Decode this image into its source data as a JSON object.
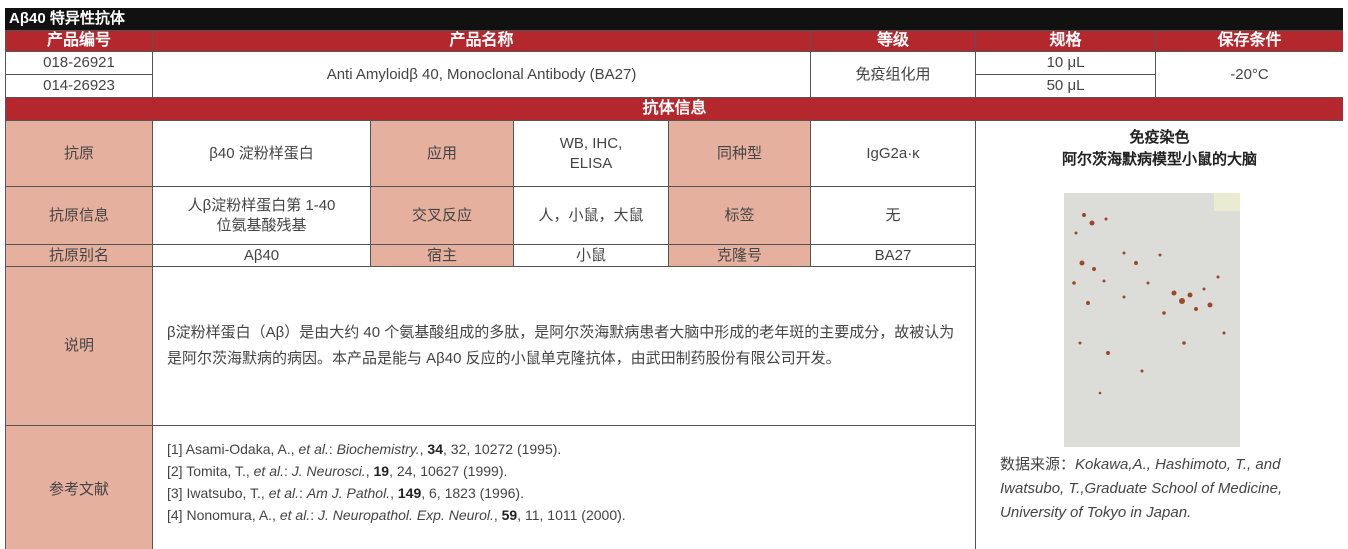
{
  "title": "Aβ40 特异性抗体",
  "product_table": {
    "headers": [
      "产品编号",
      "产品名称",
      "等级",
      "规格",
      "保存条件"
    ],
    "rows": [
      {
        "code": "018-26921",
        "size": "10 μL"
      },
      {
        "code": "014-26923",
        "size": "50 μL"
      }
    ],
    "name": "Anti Amyloidβ 40, Monoclonal Antibody (BA27)",
    "grade": "免疫组化用",
    "storage": "-20°C"
  },
  "info_header": "抗体信息",
  "info": {
    "rows": [
      [
        "抗原",
        "β40 淀粉样蛋白",
        "应用",
        "WB, IHC, ELISA",
        "同种型",
        "IgG2a·κ"
      ],
      [
        "抗原信息",
        "人β淀粉样蛋白第 1-40 位氨基酸残基",
        "交叉反应",
        "人，小鼠，大鼠",
        "标签",
        "无"
      ],
      [
        "抗原别名",
        "Aβ40",
        "宿主",
        "小鼠",
        "克隆号",
        "BA27"
      ]
    ],
    "description_label": "说明",
    "description": "β淀粉样蛋白（Aβ）是由大约 40 个氨基酸组成的多肽，是阿尔茨海默病患者大脑中形成的老年斑的主要成分，故被认为是阿尔茨海默病的病因。本产品是能与 Aβ40 反应的小鼠单克隆抗体，由武田制药股份有限公司开发。",
    "references_label": "参考文献",
    "references": [
      [
        "[1] Asami-Odaka, A., ",
        "et al.",
        ": ",
        "Biochemistry.",
        ", ",
        "34",
        ", 32, 10272 (1995)."
      ],
      [
        "[2] Tomita, T., ",
        "et al.",
        ": ",
        "J. Neurosci.",
        ", ",
        "19",
        ", 24, 10627 (1999)."
      ],
      [
        "[3] Iwatsubo, T., ",
        "et al.",
        ": ",
        "Am J. Pathol.",
        ", ",
        "149",
        ", 6, 1823 (1996)."
      ],
      [
        "[4] Nonomura, A., ",
        "et al.",
        ": ",
        "J. Neuropathol. Exp. Neurol.",
        ", ",
        "59",
        ", 11, 1011 (2000)."
      ]
    ]
  },
  "figure": {
    "title": "免疫染色",
    "subtitle": "阿尔茨海默病模型小鼠的大脑",
    "caption_prefix": "数据来源：",
    "caption": "Kokawa,A., Hashimoto, T., and Iwatsubo, T.,Graduate School of Medicine, University of Tokyo in Japan."
  }
}
